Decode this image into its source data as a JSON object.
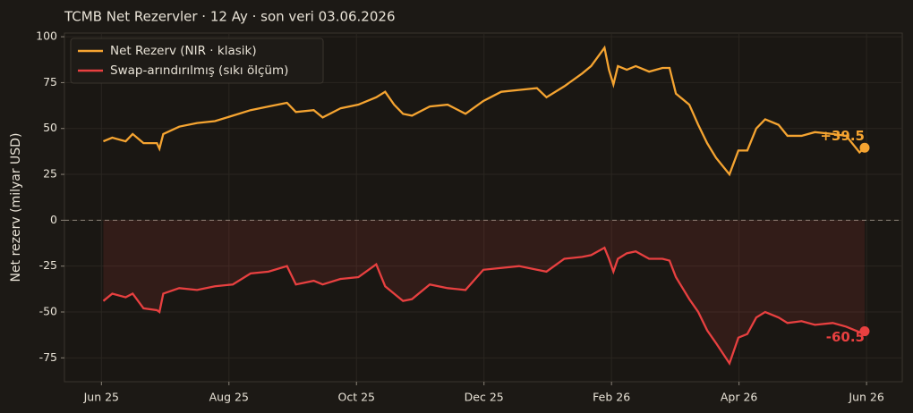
{
  "chart_data": {
    "type": "line",
    "title": "TCMB Net Rezervler · 12 Ay · son veri 03.06.2026",
    "y_label": "Net rezerv (milyar USD)",
    "x": [
      0.03,
      0.17,
      0.38,
      0.49,
      0.66,
      0.87,
      0.91,
      0.97,
      1.22,
      1.5,
      1.78,
      2.06,
      2.34,
      2.62,
      2.91,
      3.05,
      3.33,
      3.47,
      3.75,
      4.03,
      4.31,
      4.45,
      4.59,
      4.73,
      4.87,
      5.15,
      5.43,
      5.71,
      5.99,
      6.27,
      6.55,
      6.83,
      6.98,
      7.26,
      7.54,
      7.68,
      7.89,
      7.96,
      8.03,
      8.1,
      8.24,
      8.38,
      8.59,
      8.8,
      8.91,
      9.01,
      9.22,
      9.36,
      9.5,
      9.64,
      9.85,
      9.99,
      10.13,
      10.27,
      10.41,
      10.62,
      10.76,
      10.98,
      11.19,
      11.47,
      11.68,
      11.89,
      11.97
    ],
    "series": [
      {
        "name": "Net Rezerv (NIR · klasik)",
        "color": "#f5a431",
        "last_label": "+39.5",
        "values": [
          43,
          45,
          43,
          47,
          42,
          42,
          39,
          47,
          51,
          53,
          54,
          57,
          60,
          62,
          64,
          59,
          60,
          56,
          61,
          63,
          67,
          70,
          63,
          58,
          57,
          62,
          63,
          58,
          65,
          70,
          71,
          72,
          67,
          73,
          80,
          84,
          94,
          82,
          74,
          84,
          82,
          84,
          81,
          83,
          83,
          69,
          63,
          52,
          42,
          34,
          25,
          38,
          38,
          50,
          55,
          52,
          46,
          46,
          48,
          47,
          46,
          37,
          39.5
        ]
      },
      {
        "name": "Swap-arındırılmış (sıkı ölçüm)",
        "color": "#e84040",
        "last_label": "-60.5",
        "fill": true,
        "values": [
          -44,
          -40,
          -42,
          -40,
          -48,
          -49,
          -50,
          -40,
          -37,
          -38,
          -36,
          -35,
          -29,
          -28,
          -25,
          -35,
          -33,
          -35,
          -32,
          -31,
          -24,
          -36,
          -40,
          -44,
          -43,
          -35,
          -37,
          -38,
          -27,
          -26,
          -25,
          -27,
          -28,
          -21,
          -20,
          -19,
          -15,
          -21,
          -28,
          -21,
          -18,
          -17,
          -21,
          -21,
          -22,
          -31,
          -43,
          -50,
          -60,
          -67,
          -78,
          -64,
          -62,
          -53,
          -50,
          -53,
          -56,
          -55,
          -57,
          -56,
          -58,
          -61,
          -60.5
        ]
      }
    ],
    "xlim": [
      -0.58,
      12.56
    ],
    "xticks": [
      {
        "value": 0,
        "label": "Jun 25"
      },
      {
        "value": 2,
        "label": "Aug 25"
      },
      {
        "value": 4,
        "label": "Oct 25"
      },
      {
        "value": 6,
        "label": "Dec 25"
      },
      {
        "value": 8,
        "label": "Feb 26"
      },
      {
        "value": 10,
        "label": "Apr 26"
      },
      {
        "value": 12,
        "label": "Jun 26"
      }
    ],
    "ylim": [
      -88,
      102
    ],
    "yticks": [
      -75,
      -50,
      -25,
      0,
      25,
      50,
      75,
      100
    ],
    "hline": 0,
    "grid": true,
    "legend": "upper left"
  }
}
